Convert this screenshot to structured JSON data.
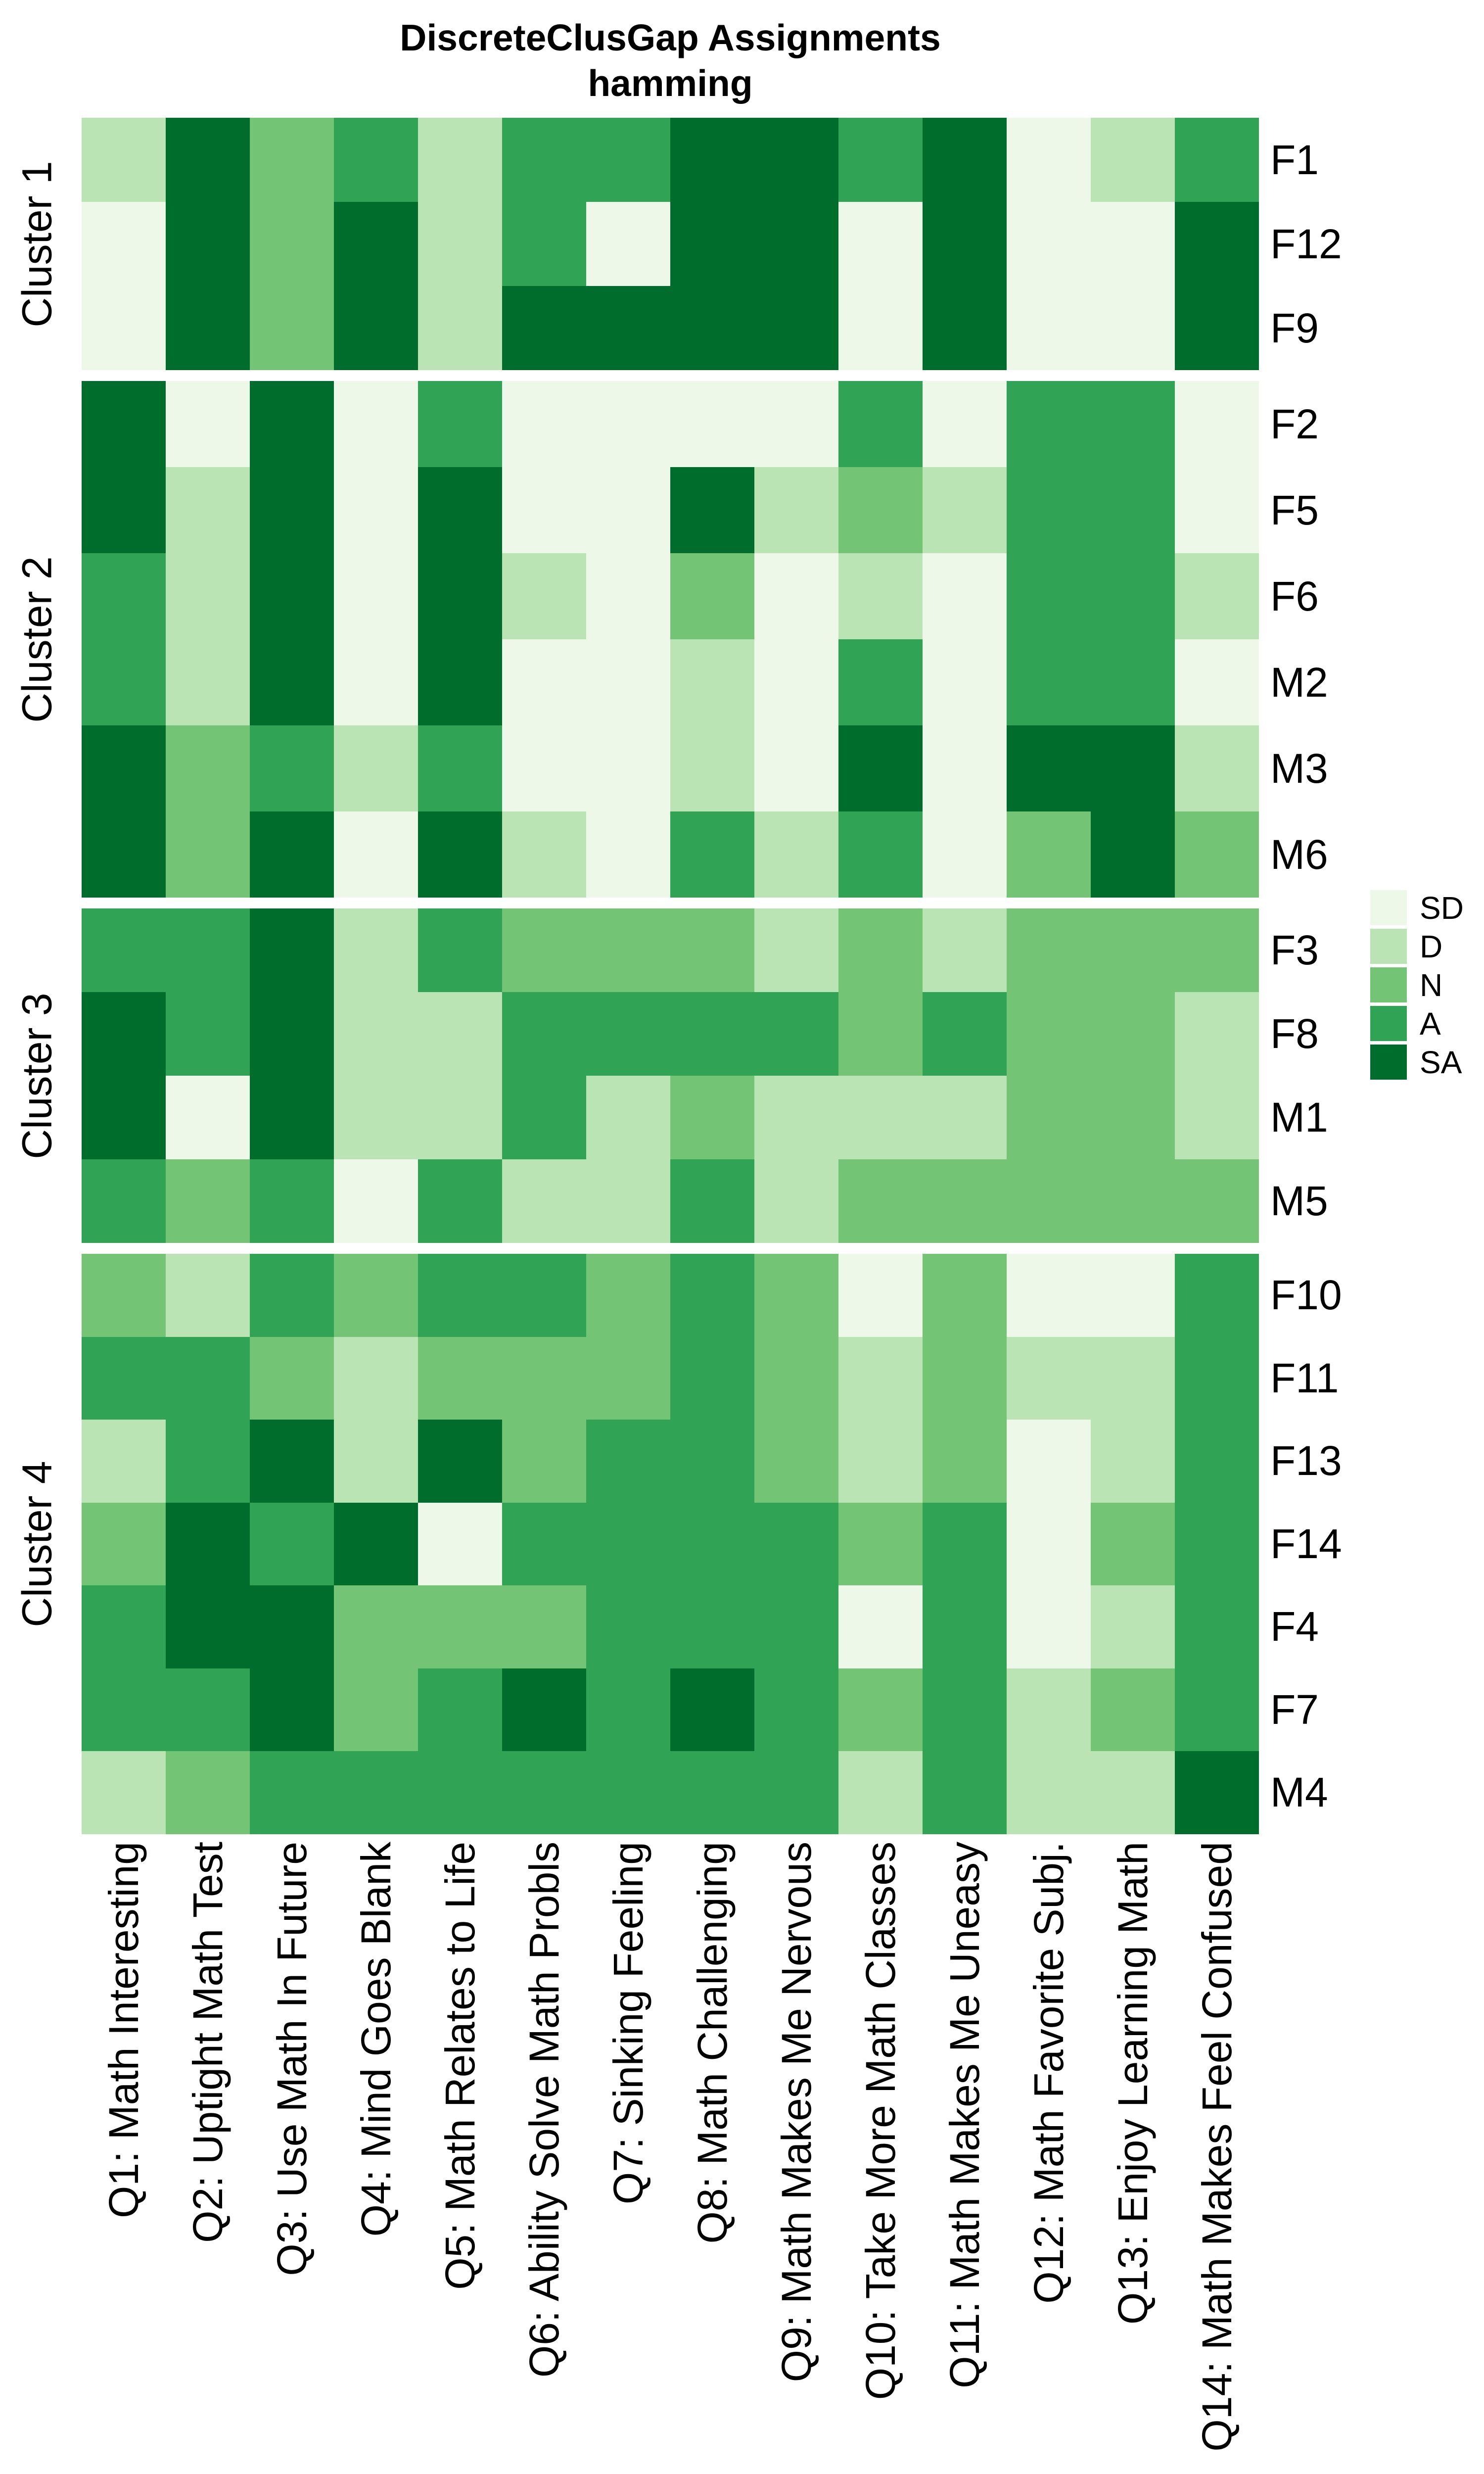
{
  "title": {
    "line1": "DiscreteClusGap Assignments",
    "line2": "hamming"
  },
  "legend": {
    "position": "right",
    "items": [
      {
        "label": "SD",
        "color": "#EDF8E9"
      },
      {
        "label": "D",
        "color": "#BAE4B3"
      },
      {
        "label": "N",
        "color": "#74C476"
      },
      {
        "label": "A",
        "color": "#31A354"
      },
      {
        "label": "SA",
        "color": "#006D2C"
      }
    ]
  },
  "chart_data": {
    "type": "heatmap",
    "title": "DiscreteClusGap Assignments",
    "subtitle": "hamming",
    "value_scale": [
      "SD",
      "D",
      "N",
      "A",
      "SA"
    ],
    "palette": {
      "SD": "#EDF8E9",
      "D": "#BAE4B3",
      "N": "#74C476",
      "A": "#31A354",
      "SA": "#006D2C"
    },
    "legend_position": "right",
    "grid": "off",
    "columns": [
      "Q1: Math Interesting",
      "Q2: Uptight Math Test",
      "Q3: Use Math In Future",
      "Q4: Mind Goes Blank",
      "Q5: Math Relates to Life",
      "Q6: Ability Solve Math Probls",
      "Q7: Sinking Feeling",
      "Q8: Math Challenging",
      "Q9: Math Makes Me Nervous",
      "Q10: Take More Math Classes",
      "Q11: Math Makes Me Uneasy",
      "Q12: Math Favorite Subj.",
      "Q13: Enjoy Learning Math",
      "Q14: Math Makes Feel Confused"
    ],
    "clusters": [
      {
        "name": "Cluster 1",
        "rows": [
          {
            "id": "F1",
            "values": [
              "D",
              "SA",
              "N",
              "A",
              "D",
              "A",
              "A",
              "SA",
              "SA",
              "A",
              "SA",
              "SD",
              "D",
              "A"
            ]
          },
          {
            "id": "F12",
            "values": [
              "SD",
              "SA",
              "N",
              "SA",
              "D",
              "A",
              "SD",
              "SA",
              "SA",
              "SD",
              "SA",
              "SD",
              "SD",
              "SA"
            ]
          },
          {
            "id": "F9",
            "values": [
              "SD",
              "SA",
              "N",
              "SA",
              "D",
              "SA",
              "SA",
              "SA",
              "SA",
              "SD",
              "SA",
              "SD",
              "SD",
              "SA"
            ]
          }
        ]
      },
      {
        "name": "Cluster 2",
        "rows": [
          {
            "id": "F2",
            "values": [
              "SA",
              "SD",
              "SA",
              "SD",
              "A",
              "SD",
              "SD",
              "SD",
              "SD",
              "A",
              "SD",
              "A",
              "A",
              "SD"
            ]
          },
          {
            "id": "F5",
            "values": [
              "SA",
              "D",
              "SA",
              "SD",
              "SA",
              "SD",
              "SD",
              "SA",
              "D",
              "N",
              "D",
              "A",
              "A",
              "SD"
            ]
          },
          {
            "id": "F6",
            "values": [
              "A",
              "D",
              "SA",
              "SD",
              "SA",
              "D",
              "SD",
              "N",
              "SD",
              "D",
              "SD",
              "A",
              "A",
              "D"
            ]
          },
          {
            "id": "M2",
            "values": [
              "A",
              "D",
              "SA",
              "SD",
              "SA",
              "SD",
              "SD",
              "D",
              "SD",
              "A",
              "SD",
              "A",
              "A",
              "SD"
            ]
          },
          {
            "id": "M3",
            "values": [
              "SA",
              "N",
              "A",
              "D",
              "A",
              "SD",
              "SD",
              "D",
              "SD",
              "SA",
              "SD",
              "SA",
              "SA",
              "D"
            ]
          },
          {
            "id": "M6",
            "values": [
              "SA",
              "N",
              "SA",
              "SD",
              "SA",
              "D",
              "SD",
              "A",
              "D",
              "A",
              "SD",
              "N",
              "SA",
              "N"
            ]
          }
        ]
      },
      {
        "name": "Cluster 3",
        "rows": [
          {
            "id": "F3",
            "values": [
              "A",
              "A",
              "SA",
              "D",
              "A",
              "N",
              "N",
              "N",
              "D",
              "N",
              "D",
              "N",
              "N",
              "N"
            ]
          },
          {
            "id": "F8",
            "values": [
              "SA",
              "A",
              "SA",
              "D",
              "D",
              "A",
              "A",
              "A",
              "A",
              "N",
              "A",
              "N",
              "N",
              "D"
            ]
          },
          {
            "id": "M1",
            "values": [
              "SA",
              "SD",
              "SA",
              "D",
              "D",
              "A",
              "D",
              "N",
              "D",
              "D",
              "D",
              "N",
              "N",
              "D"
            ]
          },
          {
            "id": "M5",
            "values": [
              "A",
              "N",
              "A",
              "SD",
              "A",
              "D",
              "D",
              "A",
              "D",
              "N",
              "N",
              "N",
              "N",
              "N"
            ]
          }
        ]
      },
      {
        "name": "Cluster 4",
        "rows": [
          {
            "id": "F10",
            "values": [
              "N",
              "D",
              "A",
              "N",
              "A",
              "A",
              "N",
              "A",
              "N",
              "SD",
              "N",
              "SD",
              "SD",
              "A"
            ]
          },
          {
            "id": "F11",
            "values": [
              "A",
              "A",
              "N",
              "D",
              "N",
              "N",
              "N",
              "A",
              "N",
              "D",
              "N",
              "D",
              "D",
              "A"
            ]
          },
          {
            "id": "F13",
            "values": [
              "D",
              "A",
              "SA",
              "D",
              "SA",
              "N",
              "A",
              "A",
              "N",
              "D",
              "N",
              "SD",
              "D",
              "A"
            ]
          },
          {
            "id": "F14",
            "values": [
              "N",
              "SA",
              "A",
              "SA",
              "SD",
              "A",
              "A",
              "A",
              "A",
              "N",
              "A",
              "SD",
              "N",
              "A"
            ]
          },
          {
            "id": "F4",
            "values": [
              "A",
              "SA",
              "SA",
              "N",
              "N",
              "N",
              "A",
              "A",
              "A",
              "SD",
              "A",
              "SD",
              "D",
              "A"
            ]
          },
          {
            "id": "F7",
            "values": [
              "A",
              "A",
              "SA",
              "N",
              "A",
              "SA",
              "A",
              "SA",
              "A",
              "N",
              "A",
              "D",
              "N",
              "A"
            ]
          },
          {
            "id": "M4",
            "values": [
              "D",
              "N",
              "A",
              "A",
              "A",
              "A",
              "A",
              "A",
              "A",
              "D",
              "A",
              "D",
              "D",
              "SA"
            ]
          }
        ]
      }
    ]
  }
}
